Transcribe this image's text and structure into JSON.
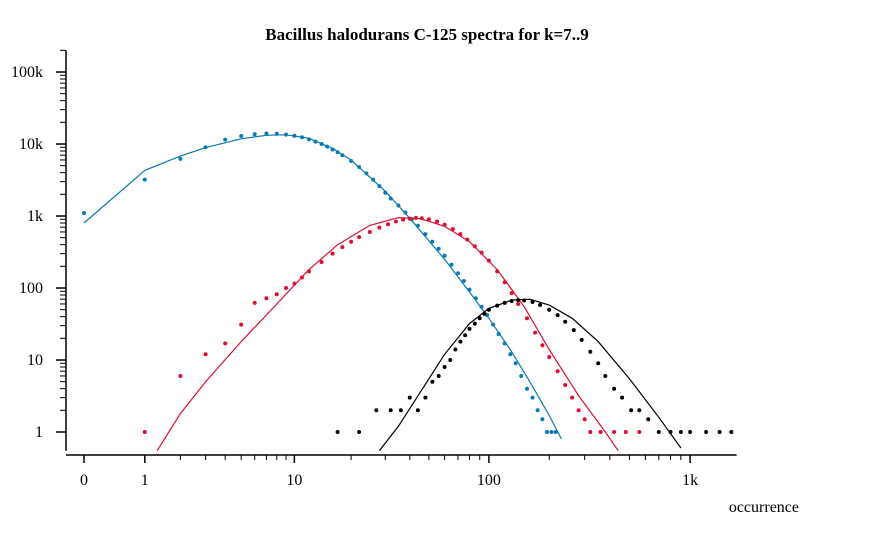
{
  "chart_data": {
    "type": "scatter",
    "title": "Bacillus halodurans C-125 spectra for k=7..9",
    "xlabel": "occurrence",
    "ylabel": "",
    "xscale": "log(1+x)",
    "yscale": "log",
    "xlim": [
      0,
      1700
    ],
    "ylim": [
      0.55,
      200000
    ],
    "x_ticks": [
      {
        "value": 0,
        "label": "0"
      },
      {
        "value": 1,
        "label": "1"
      },
      {
        "value": 10,
        "label": "10"
      },
      {
        "value": 100,
        "label": "100"
      },
      {
        "value": 1000,
        "label": "1k"
      }
    ],
    "y_ticks": [
      {
        "value": 1,
        "label": "1"
      },
      {
        "value": 10,
        "label": "10"
      },
      {
        "value": 100,
        "label": "100"
      },
      {
        "value": 1000,
        "label": "1k"
      },
      {
        "value": 10000,
        "label": "10k"
      },
      {
        "value": 100000,
        "label": "100k"
      }
    ],
    "grid": false,
    "legend": "none",
    "series": [
      {
        "color": "#0a7ab5",
        "points": [
          [
            0,
            1100
          ],
          [
            1,
            3200
          ],
          [
            2,
            6200
          ],
          [
            3,
            9000
          ],
          [
            4,
            11500
          ],
          [
            5,
            12900
          ],
          [
            6,
            13700
          ],
          [
            7,
            14000
          ],
          [
            8,
            13900
          ],
          [
            9,
            13500
          ],
          [
            10,
            13000
          ],
          [
            11,
            12400
          ],
          [
            12,
            11600
          ],
          [
            13,
            10800
          ],
          [
            14,
            10000
          ],
          [
            15,
            9200
          ],
          [
            16,
            8400
          ],
          [
            17,
            7700
          ],
          [
            18,
            7000
          ],
          [
            20,
            5800
          ],
          [
            22,
            4800
          ],
          [
            24,
            3900
          ],
          [
            26,
            3200
          ],
          [
            28,
            2600
          ],
          [
            30,
            2100
          ],
          [
            32,
            1750
          ],
          [
            35,
            1400
          ],
          [
            38,
            1120
          ],
          [
            41,
            900
          ],
          [
            44,
            730
          ],
          [
            48,
            560
          ],
          [
            52,
            440
          ],
          [
            56,
            350
          ],
          [
            60,
            280
          ],
          [
            65,
            210
          ],
          [
            70,
            160
          ],
          [
            75,
            125
          ],
          [
            80,
            95
          ],
          [
            86,
            72
          ],
          [
            92,
            55
          ],
          [
            98,
            42
          ],
          [
            105,
            31
          ],
          [
            112,
            23
          ],
          [
            120,
            17
          ],
          [
            128,
            12
          ],
          [
            136,
            9
          ],
          [
            145,
            6
          ],
          [
            155,
            4
          ],
          [
            165,
            3
          ],
          [
            175,
            2
          ],
          [
            185,
            1.5
          ],
          [
            195,
            1
          ],
          [
            205,
            1
          ],
          [
            215,
            1
          ]
        ],
        "fit": [
          [
            0,
            800
          ],
          [
            1,
            4300
          ],
          [
            2,
            6800
          ],
          [
            3,
            8900
          ],
          [
            5,
            11800
          ],
          [
            7,
            13200
          ],
          [
            9,
            13400
          ],
          [
            12,
            12000
          ],
          [
            16,
            8700
          ],
          [
            20,
            6000
          ],
          [
            30,
            2200
          ],
          [
            40,
            930
          ],
          [
            60,
            250
          ],
          [
            80,
            88
          ],
          [
            100,
            38
          ],
          [
            130,
            13
          ],
          [
            160,
            5
          ],
          [
            200,
            1.7
          ],
          [
            230,
            0.8
          ]
        ]
      },
      {
        "color": "#dc0f32",
        "points": [
          [
            1,
            1
          ],
          [
            2,
            6
          ],
          [
            3,
            12
          ],
          [
            4,
            17
          ],
          [
            5,
            31
          ],
          [
            6,
            62
          ],
          [
            7,
            72
          ],
          [
            8,
            82
          ],
          [
            9,
            100
          ],
          [
            10,
            115
          ],
          [
            11,
            140
          ],
          [
            12,
            170
          ],
          [
            14,
            230
          ],
          [
            16,
            300
          ],
          [
            18,
            370
          ],
          [
            20,
            440
          ],
          [
            22,
            510
          ],
          [
            25,
            600
          ],
          [
            28,
            690
          ],
          [
            31,
            770
          ],
          [
            34,
            840
          ],
          [
            37,
            890
          ],
          [
            40,
            920
          ],
          [
            43,
            940
          ],
          [
            46,
            930
          ],
          [
            50,
            900
          ],
          [
            55,
            840
          ],
          [
            60,
            760
          ],
          [
            66,
            660
          ],
          [
            72,
            560
          ],
          [
            78,
            470
          ],
          [
            85,
            380
          ],
          [
            92,
            310
          ],
          [
            100,
            240
          ],
          [
            110,
            170
          ],
          [
            120,
            120
          ],
          [
            130,
            85
          ],
          [
            140,
            60
          ],
          [
            155,
            38
          ],
          [
            170,
            24
          ],
          [
            185,
            16
          ],
          [
            200,
            11
          ],
          [
            220,
            7
          ],
          [
            240,
            4.5
          ],
          [
            260,
            3
          ],
          [
            280,
            2
          ],
          [
            300,
            1.5
          ],
          [
            320,
            1
          ],
          [
            360,
            1
          ],
          [
            420,
            1
          ],
          [
            480,
            1
          ],
          [
            560,
            1
          ]
        ],
        "fit": [
          [
            1.3,
            0.55
          ],
          [
            2,
            1.8
          ],
          [
            3,
            5
          ],
          [
            5,
            18
          ],
          [
            8,
            60
          ],
          [
            12,
            180
          ],
          [
            17,
            400
          ],
          [
            25,
            740
          ],
          [
            35,
            950
          ],
          [
            45,
            920
          ],
          [
            60,
            720
          ],
          [
            80,
            440
          ],
          [
            110,
            180
          ],
          [
            150,
            55
          ],
          [
            200,
            14
          ],
          [
            280,
            3.2
          ],
          [
            380,
            1
          ],
          [
            440,
            0.55
          ]
        ]
      },
      {
        "color": "#000000",
        "points": [
          [
            17,
            1
          ],
          [
            22,
            1
          ],
          [
            27,
            2
          ],
          [
            32,
            2
          ],
          [
            36,
            2
          ],
          [
            40,
            3
          ],
          [
            44,
            2
          ],
          [
            48,
            3
          ],
          [
            52,
            5
          ],
          [
            56,
            6
          ],
          [
            60,
            8
          ],
          [
            64,
            10
          ],
          [
            68,
            14
          ],
          [
            72,
            18
          ],
          [
            76,
            22
          ],
          [
            80,
            27
          ],
          [
            85,
            32
          ],
          [
            90,
            38
          ],
          [
            95,
            44
          ],
          [
            100,
            50
          ],
          [
            110,
            57
          ],
          [
            120,
            62
          ],
          [
            130,
            66
          ],
          [
            140,
            68
          ],
          [
            150,
            67
          ],
          [
            165,
            64
          ],
          [
            180,
            58
          ],
          [
            200,
            50
          ],
          [
            220,
            42
          ],
          [
            240,
            34
          ],
          [
            265,
            26
          ],
          [
            290,
            19
          ],
          [
            320,
            13
          ],
          [
            350,
            9
          ],
          [
            380,
            6
          ],
          [
            420,
            4
          ],
          [
            460,
            3
          ],
          [
            510,
            2
          ],
          [
            560,
            2
          ],
          [
            620,
            1.5
          ],
          [
            700,
            1
          ],
          [
            800,
            1
          ],
          [
            900,
            1
          ],
          [
            1000,
            1
          ],
          [
            1200,
            1
          ],
          [
            1400,
            1
          ],
          [
            1600,
            1
          ]
        ],
        "fit": [
          [
            28,
            0.55
          ],
          [
            35,
            1.2
          ],
          [
            45,
            3.5
          ],
          [
            60,
            12
          ],
          [
            80,
            32
          ],
          [
            100,
            52
          ],
          [
            130,
            68
          ],
          [
            160,
            70
          ],
          [
            200,
            58
          ],
          [
            260,
            38
          ],
          [
            350,
            18
          ],
          [
            500,
            5.5
          ],
          [
            700,
            1.6
          ],
          [
            900,
            0.6
          ]
        ]
      }
    ]
  }
}
